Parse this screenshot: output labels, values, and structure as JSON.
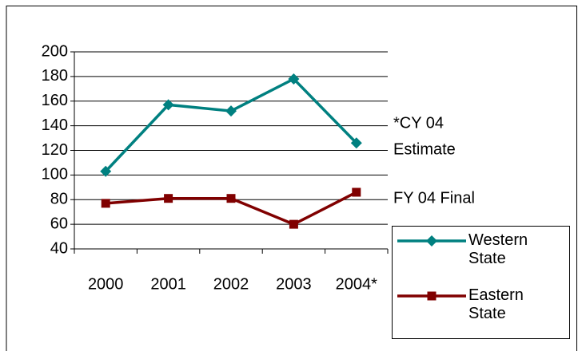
{
  "chart_data": {
    "type": "line",
    "categories": [
      "2000",
      "2001",
      "2002",
      "2003",
      "2004*"
    ],
    "series": [
      {
        "name": "Western State",
        "color": "#008080",
        "marker": "diamond",
        "values": [
          103,
          157,
          152,
          178,
          126
        ]
      },
      {
        "name": "Eastern State",
        "color": "#800000",
        "marker": "square",
        "values": [
          77,
          81,
          81,
          60,
          86
        ]
      }
    ],
    "ylim": [
      40,
      200
    ],
    "yticks": [
      40,
      60,
      80,
      100,
      120,
      140,
      160,
      180,
      200
    ],
    "grid": true,
    "annotations": [
      "*CY 04",
      "Estimate",
      "FY 04 Final"
    ],
    "legend": "right"
  }
}
